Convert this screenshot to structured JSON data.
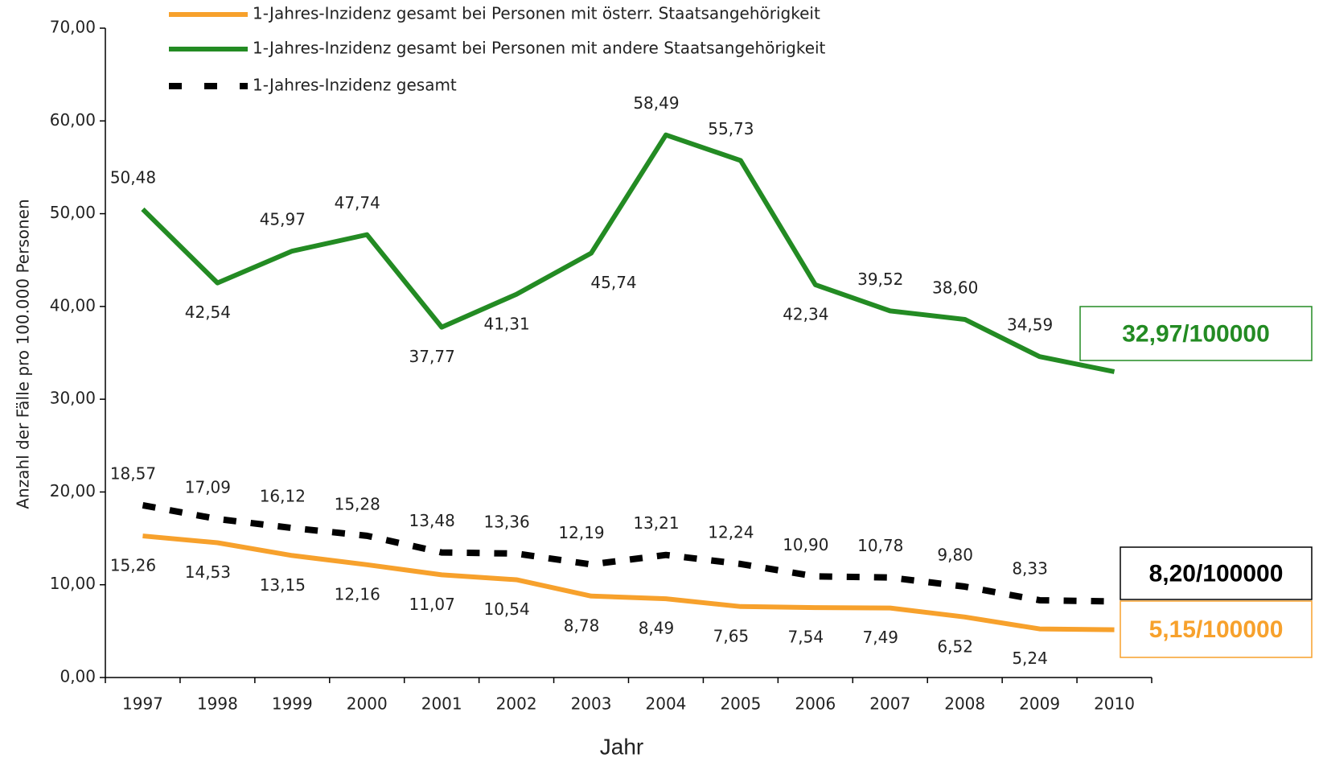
{
  "chart_data": {
    "type": "line",
    "x_label": "Jahr",
    "y_label": "Anzahl der Fälle pro 100.000 Personen",
    "categories": [
      "1997",
      "1998",
      "1999",
      "2000",
      "2001",
      "2002",
      "2003",
      "2004",
      "2005",
      "2006",
      "2007",
      "2008",
      "2009",
      "2010"
    ],
    "ylim": [
      0,
      70
    ],
    "yticks": [
      {
        "value": 0,
        "label": "0,00"
      },
      {
        "value": 10,
        "label": "10,00"
      },
      {
        "value": 20,
        "label": "20,00"
      },
      {
        "value": 30,
        "label": "30,00"
      },
      {
        "value": 40,
        "label": "40,00"
      },
      {
        "value": 50,
        "label": "50,00"
      },
      {
        "value": 60,
        "label": "60,00"
      },
      {
        "value": 70,
        "label": "70,00"
      }
    ],
    "grid": false,
    "legend": "top",
    "series": [
      {
        "name": "1-Jahres-Inzidenz gesamt bei Personen mit österr. Staatsangehörigkeit",
        "color": "#f7a12c",
        "style": "solid",
        "values": [
          15.26,
          14.53,
          13.15,
          12.16,
          11.07,
          10.54,
          8.78,
          8.49,
          7.65,
          7.54,
          7.49,
          6.52,
          5.24,
          5.15
        ],
        "value_labels": [
          "15,26",
          "14,53",
          "13,15",
          "12,16",
          "11,07",
          "10,54",
          "8,78",
          "8,49",
          "7,65",
          "7,54",
          "7,49",
          "6,52",
          "5,24",
          "5,15/100000"
        ]
      },
      {
        "name": "1-Jahres-Inzidenz gesamt bei Personen mit andere Staatsangehörigkeit",
        "color": "#238b23",
        "style": "solid",
        "values": [
          50.48,
          42.54,
          45.97,
          47.74,
          37.77,
          41.31,
          45.74,
          58.49,
          55.73,
          42.34,
          39.52,
          38.6,
          34.59,
          32.97
        ],
        "value_labels": [
          "50,48",
          "42,54",
          "45,97",
          "47,74",
          "37,77",
          "41,31",
          "45,74",
          "58,49",
          "55,73",
          "42,34",
          "39,52",
          "38,60",
          "34,59",
          "32,97/100000"
        ]
      },
      {
        "name": "1-Jahres-Inzidenz gesamt",
        "color": "#000000",
        "style": "dashed",
        "values": [
          18.57,
          17.09,
          16.12,
          15.28,
          13.48,
          13.36,
          12.19,
          13.21,
          12.24,
          10.9,
          10.78,
          9.8,
          8.33,
          8.2
        ],
        "value_labels": [
          "18,57",
          "17,09",
          "16,12",
          "15,28",
          "13,48",
          "13,36",
          "12,19",
          "13,21",
          "12,24",
          "10,90",
          "10,78",
          "9,80",
          "8,33",
          "8,20/100000"
        ]
      }
    ]
  }
}
